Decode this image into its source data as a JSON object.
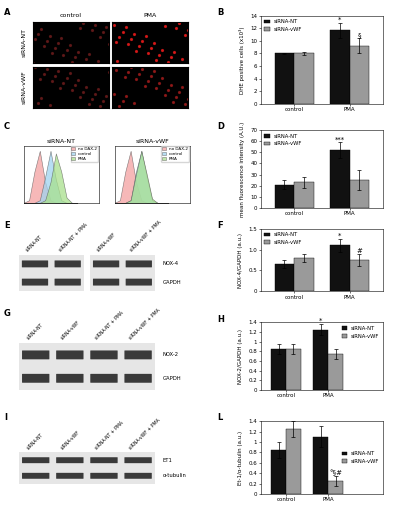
{
  "chart_data": [
    {
      "type": "bar",
      "panel_label": "B",
      "ylabel": "DHE positive cells (x10³)",
      "categories": [
        "control",
        "PMA"
      ],
      "series": [
        {
          "name": "siRNA-NT",
          "color": "#111111",
          "values": [
            8,
            11.7
          ],
          "errors": [
            0.1,
            1.2
          ]
        },
        {
          "name": "siRNA-vWF",
          "color": "#9a9a9a",
          "values": [
            8,
            9.2
          ],
          "errors": [
            0.2,
            1.2
          ]
        }
      ],
      "annotations": [
        {
          "text": "*",
          "series": "siRNA-NT",
          "category": "PMA"
        },
        {
          "text": "§",
          "series": "siRNA-vWF",
          "category": "PMA"
        }
      ],
      "ylim": [
        0,
        14
      ],
      "yticks": [
        0,
        2,
        4,
        6,
        8,
        10,
        12,
        14
      ],
      "legend": "upper left"
    },
    {
      "type": "area",
      "panel_label": "C",
      "title": "siRNA-NT",
      "tick_labels": false,
      "x": [
        0,
        1,
        2,
        3,
        4,
        5,
        6,
        7,
        8,
        9,
        10
      ],
      "xlim": [
        0,
        14
      ],
      "ylim": [
        0,
        110
      ],
      "series": [
        {
          "name": "no DAX-2",
          "color": "#f4a0a0",
          "values": [
            0,
            5,
            60,
            100,
            40,
            5,
            0,
            0,
            0,
            0,
            0
          ]
        },
        {
          "name": "control",
          "color": "#9fd3f0",
          "values": [
            0,
            0,
            0,
            5,
            50,
            100,
            45,
            5,
            0,
            0,
            0
          ]
        },
        {
          "name": "PMA",
          "color": "#a8e08c",
          "values": [
            0,
            0,
            0,
            0,
            5,
            40,
            95,
            60,
            10,
            0,
            0
          ]
        }
      ],
      "legend": "upper right"
    },
    {
      "type": "area",
      "title": "siRNA-vWF",
      "tick_labels": false,
      "x": [
        0,
        1,
        2,
        3,
        4,
        5,
        6,
        7,
        8,
        9,
        10
      ],
      "xlim": [
        0,
        14
      ],
      "ylim": [
        0,
        110
      ],
      "series": [
        {
          "name": "no DAX-2",
          "color": "#f4a0a0",
          "values": [
            0,
            5,
            60,
            100,
            40,
            5,
            0,
            0,
            0,
            0,
            0
          ]
        },
        {
          "name": "control",
          "color": "#9fd3f0",
          "values": [
            0,
            0,
            0,
            5,
            60,
            100,
            50,
            5,
            0,
            0,
            0
          ]
        },
        {
          "name": "PMA",
          "color": "#a8e08c",
          "values": [
            0,
            0,
            0,
            5,
            55,
            100,
            55,
            8,
            0,
            0,
            0
          ]
        }
      ],
      "legend": "upper right"
    },
    {
      "type": "bar",
      "panel_label": "D",
      "ylabel": "mean fluorescence intensity (A.U.)",
      "categories": [
        "control",
        "PMA"
      ],
      "series": [
        {
          "name": "siRNA-NT",
          "color": "#111111",
          "values": [
            21,
            52
          ],
          "errors": [
            4,
            7
          ]
        },
        {
          "name": "siRNA-vWF",
          "color": "#9a9a9a",
          "values": [
            23,
            25
          ],
          "errors": [
            5,
            9
          ]
        }
      ],
      "annotations": [
        {
          "text": "***",
          "series": "siRNA-NT",
          "category": "PMA"
        }
      ],
      "ylim": [
        0,
        70
      ],
      "yticks": [
        0,
        10,
        20,
        30,
        40,
        50,
        60,
        70
      ],
      "legend": "upper left"
    },
    {
      "type": "bar",
      "panel_label": "F",
      "ylabel": "NOX-4/GAPDH (a.u.)",
      "categories": [
        "control",
        "PMA"
      ],
      "series": [
        {
          "name": "siRNA-NT",
          "color": "#111111",
          "values": [
            0.65,
            1.1
          ],
          "errors": [
            0.1,
            0.15
          ]
        },
        {
          "name": "siRNA-vWF",
          "color": "#9a9a9a",
          "values": [
            0.8,
            0.75
          ],
          "errors": [
            0.1,
            0.15
          ]
        }
      ],
      "annotations": [
        {
          "text": "*",
          "series": "siRNA-NT",
          "category": "PMA"
        },
        {
          "text": "#",
          "series": "siRNA-vWF",
          "category": "PMA"
        }
      ],
      "ylim": [
        0,
        1.5
      ],
      "yticks": [
        0,
        0.5,
        {
          "value": 1,
          "label": "1.0"
        },
        1.5
      ],
      "legend": "upper left"
    },
    {
      "type": "bar",
      "panel_label": "H",
      "ylabel": "NOX-2/GAPDH (a.u.)",
      "categories": [
        "control",
        "PMA"
      ],
      "series": [
        {
          "name": "siRNA-NT",
          "color": "#111111",
          "values": [
            0.85,
            1.25
          ],
          "errors": [
            0.1,
            0.12
          ]
        },
        {
          "name": "siRNA-vWF",
          "color": "#9a9a9a",
          "values": [
            0.85,
            0.75
          ],
          "errors": [
            0.1,
            0.1
          ]
        }
      ],
      "annotations": [
        {
          "text": "*",
          "series": "siRNA-NT",
          "category": "PMA"
        }
      ],
      "ylim": [
        0,
        1.4
      ],
      "yticks": [
        0,
        0.2,
        0.4,
        0.6,
        0.8,
        1,
        1.2,
        1.4
      ],
      "legend": "upper right"
    },
    {
      "type": "bar",
      "panel_label": "L",
      "ylabel": "Et-1/α-tubulin (a.u.)",
      "categories": [
        "control",
        "PMA"
      ],
      "series": [
        {
          "name": "siRNA-NT",
          "color": "#111111",
          "values": [
            0.85,
            1.1
          ],
          "errors": [
            0.15,
            0.2
          ]
        },
        {
          "name": "siRNA-vWF",
          "color": "#9a9a9a",
          "values": [
            1.25,
            0.25
          ],
          "errors": [
            0.15,
            0.1
          ]
        }
      ],
      "annotations": [
        {
          "text": "°§#",
          "series": "siRNA-vWF",
          "category": "PMA"
        }
      ],
      "ylim": [
        0,
        1.4
      ],
      "yticks": [
        0,
        0.2,
        0.4,
        0.6,
        0.8,
        1,
        1.2,
        1.4
      ],
      "legend": "center right"
    }
  ],
  "micrographs": {
    "panel_label": "A",
    "columns": [
      "control",
      "PMA"
    ],
    "rows": [
      "siRNA-NT",
      "siRNA-vWF"
    ]
  },
  "blots": [
    {
      "panel_label": "E",
      "lanes": [
        [
          "siRNA-NT",
          "siRNA-NT + PMA"
        ],
        [
          "siRNA-vWF",
          "siRNA-vWF + PMA"
        ]
      ],
      "bands": [
        "NOX-4",
        "GAPDH"
      ]
    },
    {
      "panel_label": "G",
      "lanes": [
        [
          "siRNA-NT",
          "siRNA-vWF",
          "siRNA-NT + PMA",
          "siRNA-vWF + PMA"
        ]
      ],
      "bands": [
        "NOX-2",
        "GAPDH"
      ]
    },
    {
      "panel_label": "I",
      "lanes": [
        [
          "siRNA-NT",
          "siRNA-vWF",
          "siRNA-NT + PMA",
          "siRNA-vWF + PMA"
        ]
      ],
      "bands": [
        "ET1",
        "α-tubulin"
      ]
    }
  ]
}
